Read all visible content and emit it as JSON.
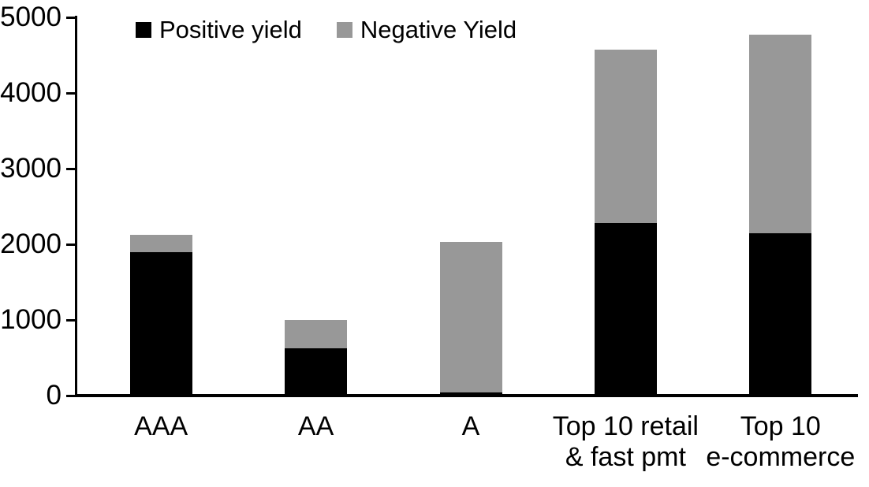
{
  "chart_data": {
    "type": "bar",
    "stacked": true,
    "title": "",
    "categories": [
      "AAA",
      "AA",
      "A",
      "Top 10 retail\n& fast pmt",
      "Top 10\ne-commerce"
    ],
    "series": [
      {
        "name": "Positive yield",
        "color": "#000000",
        "values": [
          1900,
          620,
          45,
          2280,
          2150
        ]
      },
      {
        "name": "Negative Yield",
        "color": "#989898",
        "values": [
          230,
          385,
          1990,
          2290,
          2625
        ]
      }
    ],
    "totals": [
      2130,
      1005,
      2035,
      4570,
      4775
    ],
    "xlabel": "",
    "ylabel": "",
    "ylim": [
      0,
      5000
    ],
    "yticks": [
      0,
      1000,
      2000,
      3000,
      4000,
      5000
    ],
    "grid": false,
    "legend_position": "top-inside",
    "axis_color": "#000000",
    "background_color": "#FFFFFF"
  }
}
